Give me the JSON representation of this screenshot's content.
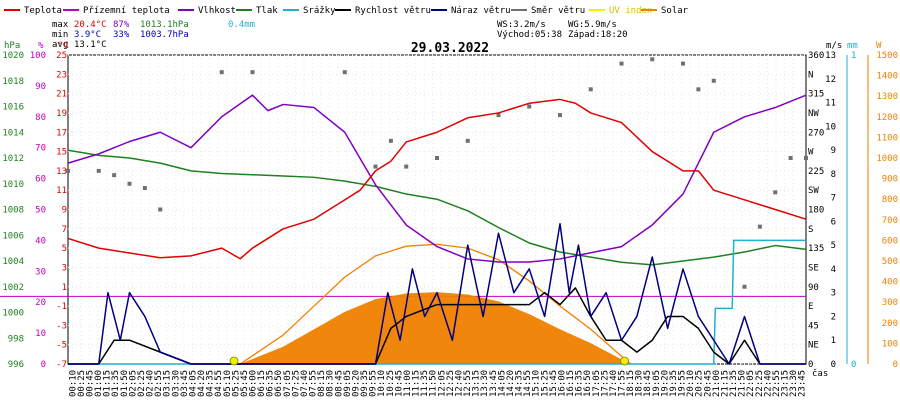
{
  "chart_data": {
    "type": "line",
    "title": "29.03.2022",
    "legend": [
      {
        "label": "Teplota",
        "color": "#e00000"
      },
      {
        "label": "Přízemní teplota",
        "color": "#c000c0"
      },
      {
        "label": "Vlhkost",
        "color": "#8000c0"
      },
      {
        "label": "Tlak",
        "color": "#208020"
      },
      {
        "label": "Srážky",
        "color": "#20b0d0"
      },
      {
        "label": "Rychlost větru",
        "color": "#000000"
      },
      {
        "label": "Náraz větru",
        "color": "#000080"
      },
      {
        "label": "Směr větru",
        "color": "#707070"
      },
      {
        "label": "UV index",
        "color": "#f0f000"
      },
      {
        "label": "Solar",
        "color": "#f08000"
      }
    ],
    "stats": {
      "max": {
        "label": "max",
        "temp": "20.4°C",
        "hum": "87%",
        "press": "1013.1hPa",
        "rain": "0.4mm"
      },
      "min": {
        "label": "min",
        "temp": "3.9°C",
        "hum": "33%",
        "press": "1003.7hPa"
      },
      "avg": {
        "label": "avg",
        "temp": "13.1°C"
      }
    },
    "info": {
      "ws": "WS:3.2m/s",
      "wg": "WG:5.9m/s",
      "sunrise": "Východ:05:38",
      "sunset": "Západ:18:20"
    },
    "axes": {
      "hpa": {
        "unit": "hPa",
        "ticks": [
          "1020",
          "1018",
          "1016",
          "1014",
          "1012",
          "1010",
          "1008",
          "1006",
          "1004",
          "1002",
          "1000",
          "998",
          "996"
        ]
      },
      "pct": {
        "unit": "%",
        "ticks": [
          "100",
          "90",
          "80",
          "70",
          "60",
          "50",
          "40",
          "30",
          "20",
          "10",
          "0"
        ]
      },
      "degc": {
        "unit": "°C",
        "ticks": [
          "25",
          "23",
          "21",
          "19",
          "17",
          "15",
          "13",
          "11",
          "9",
          "7",
          "5",
          "3",
          "1",
          "-1",
          "-3",
          "-5",
          "-7"
        ]
      },
      "ms": {
        "unit": "m/s",
        "ticks": [
          "13",
          "12",
          "11",
          "10",
          "9",
          "8",
          "7",
          "6",
          "5",
          "4",
          "3",
          "2",
          "1",
          "0"
        ]
      },
      "dir": {
        "ticks": [
          "360",
          "N",
          "315",
          "NW",
          "270",
          "W",
          "225",
          "SW",
          "180",
          "S",
          "135",
          "SE",
          "90",
          "E",
          "45",
          "NE",
          "0"
        ]
      },
      "mm": {
        "unit": "mm",
        "ticks": [
          "1",
          "0"
        ]
      },
      "w": {
        "unit": "W",
        "ticks": [
          "1500",
          "1400",
          "1300",
          "1200",
          "1100",
          "1000",
          "900",
          "800",
          "700",
          "600",
          "500",
          "400",
          "300",
          "200",
          "100",
          "0"
        ]
      },
      "time_label": "čas",
      "time_ticks": [
        "00:10",
        "00:25",
        "00:45",
        "01:00",
        "01:15",
        "01:35",
        "01:50",
        "02:05",
        "02:25",
        "02:40",
        "02:55",
        "03:15",
        "03:30",
        "03:45",
        "04:05",
        "04:20",
        "04:35",
        "04:55",
        "05:10",
        "05:25",
        "05:45",
        "06:00",
        "06:15",
        "06:35",
        "06:50",
        "07:05",
        "07:25",
        "07:40",
        "07:55",
        "08:15",
        "08:30",
        "08:45",
        "09:05",
        "09:20",
        "09:35",
        "09:55",
        "10:10",
        "10:25",
        "10:45",
        "11:00",
        "11:15",
        "11:35",
        "11:50",
        "12:05",
        "12:25",
        "12:40",
        "12:55",
        "13:15",
        "13:30",
        "13:45",
        "14:05",
        "14:20",
        "14:35",
        "14:55",
        "15:10",
        "15:25",
        "15:45",
        "16:00",
        "16:15",
        "16:35",
        "16:50",
        "17:05",
        "17:25",
        "17:40",
        "17:55",
        "18:15",
        "18:30",
        "18:45",
        "19:05",
        "19:20",
        "19:35",
        "19:55",
        "20:10",
        "20:25",
        "20:45",
        "21:00",
        "21:15",
        "21:35",
        "21:50",
        "22:05",
        "22:25",
        "22:40",
        "22:55",
        "23:15",
        "23:30",
        "23:45"
      ]
    },
    "x_range": [
      0,
      24
    ],
    "series": [
      {
        "name": "Teplota",
        "unit": "°C",
        "color": "#e00000",
        "x": [
          0,
          1,
          2,
          3,
          4,
          5,
          5.6,
          6,
          7,
          8,
          9,
          9.5,
          10,
          10.5,
          11,
          12,
          13,
          14,
          15,
          16,
          16.5,
          17,
          18,
          19,
          20,
          20.5,
          21,
          22,
          23,
          24
        ],
        "y": [
          6,
          5,
          4.5,
          4,
          4.2,
          5,
          3.9,
          5,
          7,
          8,
          10,
          11,
          13,
          14,
          16,
          17,
          18.5,
          19,
          20,
          20.4,
          20,
          19,
          18,
          15,
          13,
          13,
          11,
          10,
          9,
          8
        ]
      },
      {
        "name": "Vlhkost",
        "unit": "%",
        "color": "#8000c0",
        "x": [
          0,
          1,
          2,
          3,
          4,
          5,
          6,
          6.5,
          7,
          8,
          9,
          10,
          11,
          12,
          13,
          14,
          15,
          16,
          17,
          18,
          19,
          20,
          21,
          22,
          23,
          24
        ],
        "y": [
          65,
          68,
          72,
          75,
          70,
          80,
          87,
          82,
          84,
          83,
          75,
          58,
          45,
          38,
          34,
          33,
          33,
          34,
          36,
          38,
          45,
          55,
          75,
          80,
          83,
          87
        ]
      },
      {
        "name": "Tlak",
        "unit": "hPa",
        "color": "#208020",
        "x": [
          0,
          1,
          2,
          3,
          4,
          5,
          6,
          7,
          8,
          9,
          10,
          11,
          12,
          13,
          14,
          15,
          16,
          17,
          18,
          19,
          20,
          21,
          22,
          23,
          24
        ],
        "y": [
          1012.6,
          1012.2,
          1012,
          1011.6,
          1011,
          1010.8,
          1010.7,
          1010.6,
          1010.5,
          1010.2,
          1009.8,
          1009.2,
          1008.8,
          1007.9,
          1006.6,
          1005.4,
          1004.7,
          1004.3,
          1003.9,
          1003.7,
          1004,
          1004.3,
          1004.7,
          1005.2,
          1004.9
        ]
      },
      {
        "name": "Srážky",
        "unit": "mm",
        "color": "#20b0d0",
        "x": [
          0,
          21,
          21.05,
          21.6,
          21.65,
          24
        ],
        "y": [
          0,
          0,
          0.18,
          0.18,
          0.4,
          0.4
        ]
      },
      {
        "name": "Rychlost větru",
        "unit": "m/s",
        "color": "#000000",
        "x": [
          0,
          1,
          1.5,
          2,
          3,
          4,
          5,
          6,
          7,
          8,
          9,
          10,
          10.5,
          11,
          12,
          13,
          14,
          15,
          15.5,
          16,
          16.5,
          17,
          17.5,
          18,
          18.5,
          19,
          19.5,
          20,
          20.5,
          21,
          21.5,
          22,
          22.5,
          23,
          24
        ],
        "y": [
          0,
          0,
          1,
          1,
          0.5,
          0,
          0,
          0,
          0,
          0,
          0,
          0,
          1.5,
          2,
          2.5,
          2.5,
          2.5,
          2.5,
          3,
          2.5,
          3.2,
          2,
          1,
          1,
          0.5,
          1,
          2,
          2,
          1.5,
          0.5,
          0,
          1,
          0,
          0,
          0
        ]
      },
      {
        "name": "Náraz větru",
        "unit": "m/s",
        "color": "#000080",
        "x": [
          0,
          1,
          1.3,
          1.7,
          2,
          2.5,
          3,
          4,
          5,
          6,
          7,
          8,
          9,
          10,
          10.4,
          10.8,
          11.2,
          11.6,
          12,
          12.5,
          13,
          13.5,
          14,
          14.5,
          15,
          15.5,
          16,
          16.3,
          16.6,
          17,
          17.5,
          18,
          18.5,
          19,
          19.5,
          20,
          20.5,
          21,
          21.5,
          22,
          22.5,
          23,
          24
        ],
        "y": [
          0,
          0,
          3,
          1,
          3,
          2,
          0.5,
          0,
          0,
          0,
          0,
          0,
          0,
          0,
          3,
          1,
          4,
          2,
          3,
          1,
          5,
          2,
          5.5,
          3,
          4,
          2,
          5.9,
          3,
          5,
          2,
          3,
          1,
          2,
          4.5,
          1.5,
          4,
          2,
          1,
          0,
          2,
          0,
          0,
          0
        ]
      },
      {
        "name": "Solar",
        "unit": "W",
        "color": "#f08000",
        "x": [
          5.6,
          7,
          8,
          9,
          10,
          11,
          12,
          13,
          14,
          15,
          16,
          17,
          18,
          18.3
        ],
        "y": [
          0,
          150,
          300,
          450,
          560,
          610,
          620,
          600,
          540,
          430,
          300,
          180,
          40,
          0
        ]
      },
      {
        "name": "Směr větru",
        "unit": "°",
        "color": "#707070",
        "x": [
          0,
          1,
          1.5,
          2,
          2.5,
          3,
          5,
          6,
          9,
          10,
          10.5,
          11,
          12,
          13,
          14,
          15,
          16,
          17,
          18,
          19,
          20,
          20.5,
          21,
          22,
          22.5,
          23,
          23.5,
          24
        ],
        "y": [
          225,
          225,
          220,
          210,
          205,
          180,
          340,
          340,
          340,
          230,
          260,
          230,
          240,
          260,
          290,
          300,
          290,
          320,
          350,
          355,
          350,
          320,
          330,
          90,
          160,
          200,
          240,
          240
        ]
      }
    ],
    "uv_index": {
      "x": [
        5.4,
        18.1
      ],
      "y": [
        0,
        0
      ]
    }
  }
}
